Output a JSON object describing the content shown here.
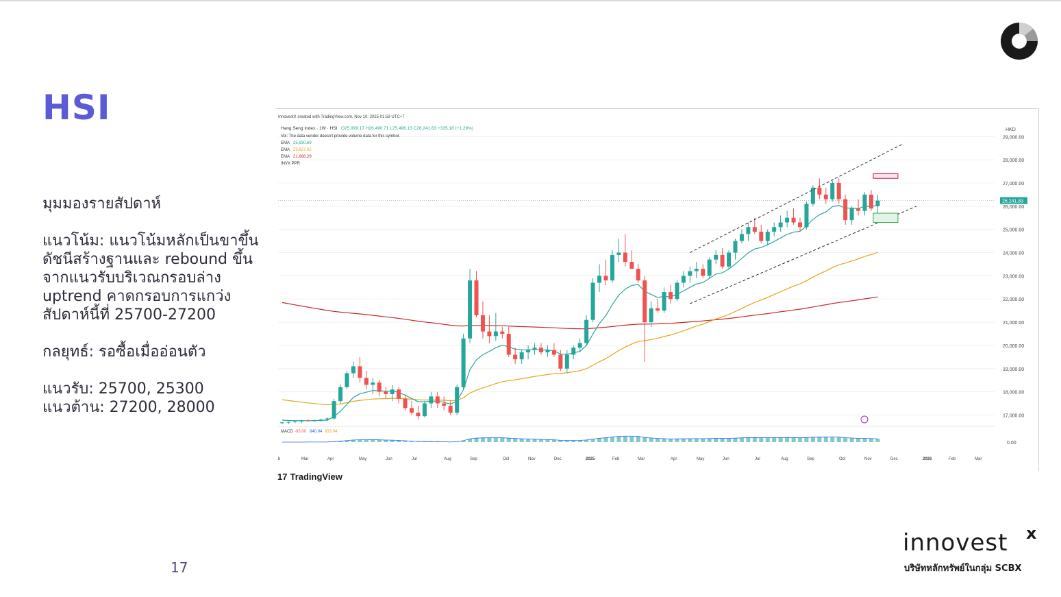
{
  "slide": {
    "title": "HSI",
    "heading": "มุมมองรายสัปดาห์",
    "trend": "แนวโน้ม: แนวโน้มหลักเป็นขาขึ้น ดัชนีสร้างฐานและ rebound ขึ้น จากแนวรับบริเวณกรอบล่าง uptrend คาดกรอบการแกว่ง สัปดาห์นี้ที่ 25700-27200",
    "strategy": "กลยุทธ์: รอซื้อเมื่ออ่อนตัว",
    "support": "แนวรับ: 25700, 25300",
    "resistance": "แนวต้าน: 27200, 28000",
    "page_number": "17",
    "brand_name": "innovest",
    "brand_x": "x",
    "brand_subtitle": "บริษัทหลักทรัพย์ในกลุ่ม SCBX",
    "tradingview_label": "TradingView",
    "colors": {
      "title": "#5b5bd6",
      "up": "#26a69a",
      "down": "#ef5350"
    }
  },
  "chart_data": {
    "type": "candlestick",
    "header_note": "InnovestX created with TradingView.com, Nov 10, 2025 01:59 UTC+7",
    "symbol_line": "Hang Seng Index · 1W · HSI",
    "ohlc_line": "O25,999.17 H26,490.71 L25,496.13 C26,241.83 +335.18 (+1.29%)",
    "vol_note": "Vol: The data vendor doesn't provide volume data for this symbol.",
    "indicators": [
      {
        "label": "EMA",
        "value": "25,930.69",
        "color": "#26a69a"
      },
      {
        "label": "EMA",
        "value": "23,627.02",
        "color": "#e8a317"
      },
      {
        "label": "EMA",
        "value": "21,666.29",
        "color": "#c62828"
      },
      {
        "label": "INVX PPR",
        "value": "",
        "color": "#555555"
      }
    ],
    "currency": "HKD",
    "last_price": "26,241.83",
    "y_ticks": [
      "29,000.00",
      "28,000.00",
      "27,000.00",
      "26,000.00",
      "25,000.00",
      "24,000.00",
      "23,000.00",
      "22,000.00",
      "21,000.00",
      "20,000.00",
      "19,000.00",
      "18,000.00",
      "17,000.00"
    ],
    "ylim": [
      16600,
      29600
    ],
    "x_labels": [
      "b",
      "Mar",
      "Apr",
      "May",
      "Jun",
      "Jul",
      "Aug",
      "Sep",
      "Oct",
      "Nov",
      "Dec",
      "2025",
      "Feb",
      "Mar",
      "Apr",
      "May",
      "Jun",
      "Jul",
      "Aug",
      "Sep",
      "Oct",
      "Nov",
      "Dec",
      "2026",
      "Feb",
      "Mar"
    ],
    "macd_label": "MACD",
    "macd_values": [
      "-93.00",
      "840.94",
      "933.94"
    ],
    "macd_zero": "0.00",
    "candles": [
      [
        16650,
        16700,
        16600,
        16680
      ],
      [
        16680,
        16720,
        16620,
        16700
      ],
      [
        16700,
        16750,
        16650,
        16720
      ],
      [
        16720,
        16800,
        16650,
        16760
      ],
      [
        16760,
        16820,
        16700,
        16740
      ],
      [
        16740,
        16800,
        16700,
        16780
      ],
      [
        16780,
        16850,
        16700,
        16800
      ],
      [
        16800,
        16900,
        16750,
        16850
      ],
      [
        16850,
        17700,
        16800,
        17600
      ],
      [
        17600,
        18300,
        17500,
        18200
      ],
      [
        18200,
        18900,
        18100,
        18800
      ],
      [
        18800,
        19300,
        18600,
        19100
      ],
      [
        19100,
        19500,
        18400,
        18600
      ],
      [
        18600,
        18900,
        18100,
        18300
      ],
      [
        18300,
        18600,
        17900,
        18400
      ],
      [
        18400,
        18500,
        17800,
        18000
      ],
      [
        18000,
        18200,
        17700,
        17900
      ],
      [
        17900,
        18300,
        17600,
        18100
      ],
      [
        18100,
        18200,
        17500,
        17700
      ],
      [
        17700,
        17900,
        17200,
        17300
      ],
      [
        17300,
        17600,
        17000,
        17100
      ],
      [
        17100,
        17400,
        16800,
        16950
      ],
      [
        16950,
        17600,
        16900,
        17500
      ],
      [
        17500,
        18000,
        17300,
        17800
      ],
      [
        17800,
        18000,
        17300,
        17500
      ],
      [
        17500,
        17800,
        17200,
        17400
      ],
      [
        17400,
        17600,
        17000,
        17100
      ],
      [
        17100,
        18300,
        17000,
        18200
      ],
      [
        18200,
        20500,
        18100,
        20300
      ],
      [
        20300,
        23300,
        20100,
        22800
      ],
      [
        22800,
        23200,
        21200,
        21300
      ],
      [
        21300,
        21900,
        20300,
        20600
      ],
      [
        20600,
        21300,
        20100,
        20400
      ],
      [
        20400,
        21400,
        20200,
        20600
      ],
      [
        20600,
        20800,
        20300,
        20500
      ],
      [
        20500,
        20800,
        19500,
        19600
      ],
      [
        19600,
        19900,
        19200,
        19400
      ],
      [
        19400,
        19800,
        19200,
        19700
      ],
      [
        19700,
        20000,
        19400,
        19800
      ],
      [
        19800,
        20100,
        19600,
        19900
      ],
      [
        19900,
        20100,
        19600,
        19700
      ],
      [
        19700,
        20000,
        19500,
        19800
      ],
      [
        19800,
        20100,
        19500,
        19600
      ],
      [
        19600,
        19800,
        18900,
        19000
      ],
      [
        19000,
        19800,
        18800,
        19600
      ],
      [
        19600,
        20000,
        19400,
        19900
      ],
      [
        19900,
        20300,
        19700,
        20100
      ],
      [
        20100,
        21300,
        20000,
        21100
      ],
      [
        21100,
        22900,
        21000,
        22700
      ],
      [
        22700,
        23500,
        22300,
        23000
      ],
      [
        23000,
        23700,
        22600,
        22800
      ],
      [
        22800,
        24100,
        22700,
        23900
      ],
      [
        23900,
        24600,
        23600,
        24000
      ],
      [
        24000,
        24800,
        23400,
        23600
      ],
      [
        23600,
        24100,
        23300,
        23300
      ],
      [
        23300,
        23500,
        22700,
        22800
      ],
      [
        22800,
        23000,
        19300,
        21000
      ],
      [
        21000,
        21900,
        20800,
        21600
      ],
      [
        21600,
        22000,
        21400,
        21500
      ],
      [
        21500,
        22500,
        21400,
        22300
      ],
      [
        22300,
        22600,
        21800,
        22000
      ],
      [
        22000,
        22800,
        21900,
        22700
      ],
      [
        22700,
        23200,
        22500,
        23000
      ],
      [
        23000,
        23400,
        22700,
        23200
      ],
      [
        23200,
        23600,
        22900,
        23300
      ],
      [
        23300,
        23500,
        22900,
        23000
      ],
      [
        23000,
        23800,
        22900,
        23700
      ],
      [
        23700,
        24100,
        23500,
        23900
      ],
      [
        23900,
        24200,
        23300,
        23400
      ],
      [
        23400,
        24100,
        23300,
        24000
      ],
      [
        24000,
        24600,
        23700,
        24500
      ],
      [
        24500,
        25000,
        24400,
        24800
      ],
      [
        24800,
        25300,
        24500,
        25100
      ],
      [
        25100,
        25500,
        24800,
        24900
      ],
      [
        24900,
        25200,
        24400,
        24500
      ],
      [
        24500,
        25000,
        24300,
        24900
      ],
      [
        24900,
        25300,
        24700,
        25100
      ],
      [
        25100,
        25600,
        24900,
        25300
      ],
      [
        25300,
        25800,
        25100,
        25500
      ],
      [
        25500,
        25900,
        25200,
        25300
      ],
      [
        25300,
        25500,
        24900,
        25100
      ],
      [
        25100,
        26200,
        25000,
        26100
      ],
      [
        26100,
        26900,
        26000,
        26800
      ],
      [
        26800,
        27200,
        26300,
        26500
      ],
      [
        26500,
        26800,
        26100,
        26300
      ],
      [
        26300,
        27100,
        26200,
        27000
      ],
      [
        27000,
        27200,
        26100,
        26300
      ],
      [
        26300,
        26500,
        25200,
        25400
      ],
      [
        25400,
        26000,
        25200,
        25900
      ],
      [
        25900,
        26300,
        25600,
        25800
      ],
      [
        25800,
        26600,
        25600,
        26500
      ],
      [
        26500,
        26700,
        25800,
        25900
      ],
      [
        25999.17,
        26490.71,
        25496.13,
        26241.83
      ]
    ]
  }
}
